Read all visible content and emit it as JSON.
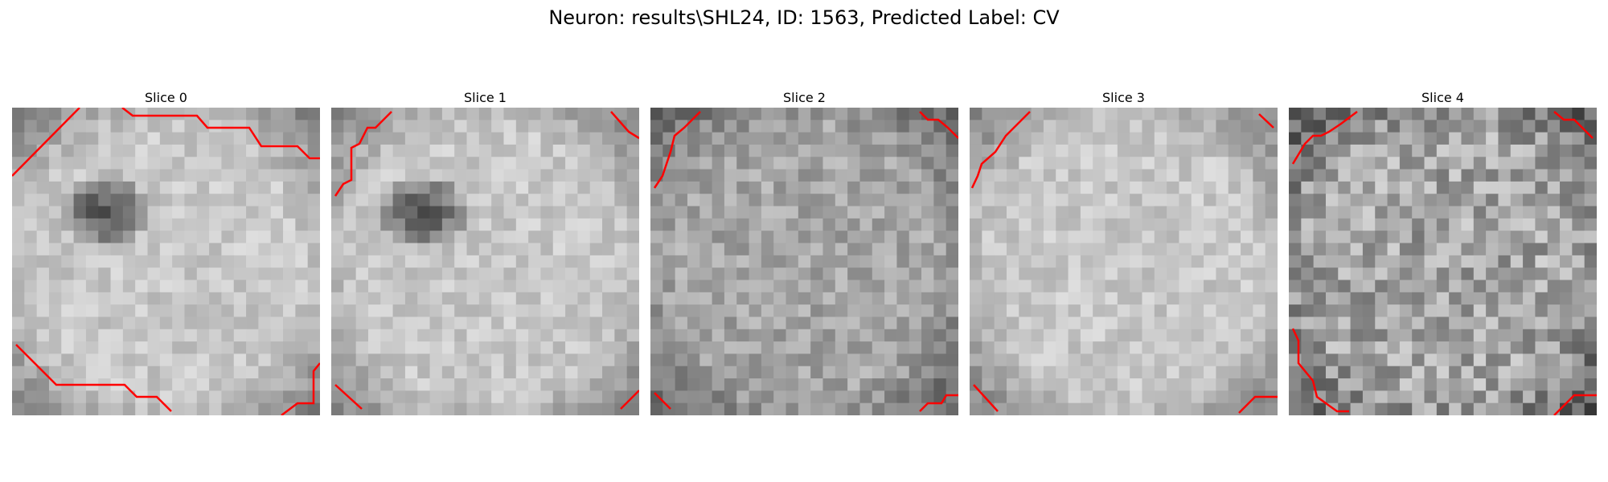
{
  "figure": {
    "suptitle": "Neuron: results\\SHL24, ID: 1563, Predicted Label: CV"
  },
  "panels": [
    {
      "title": "Slice 0",
      "seed": 11,
      "center": "light",
      "dark_blob": true,
      "contrast": "soft"
    },
    {
      "title": "Slice 1",
      "seed": 23,
      "center": "light",
      "dark_blob": true,
      "contrast": "soft"
    },
    {
      "title": "Slice 2",
      "seed": 37,
      "center": "mid",
      "dark_blob": false,
      "contrast": "mid"
    },
    {
      "title": "Slice 3",
      "seed": 51,
      "center": "light",
      "dark_blob": false,
      "contrast": "soft"
    },
    {
      "title": "Slice 4",
      "seed": 67,
      "center": "mid",
      "dark_blob": false,
      "contrast": "high"
    }
  ],
  "colors": {
    "contour": "#ff0000"
  }
}
